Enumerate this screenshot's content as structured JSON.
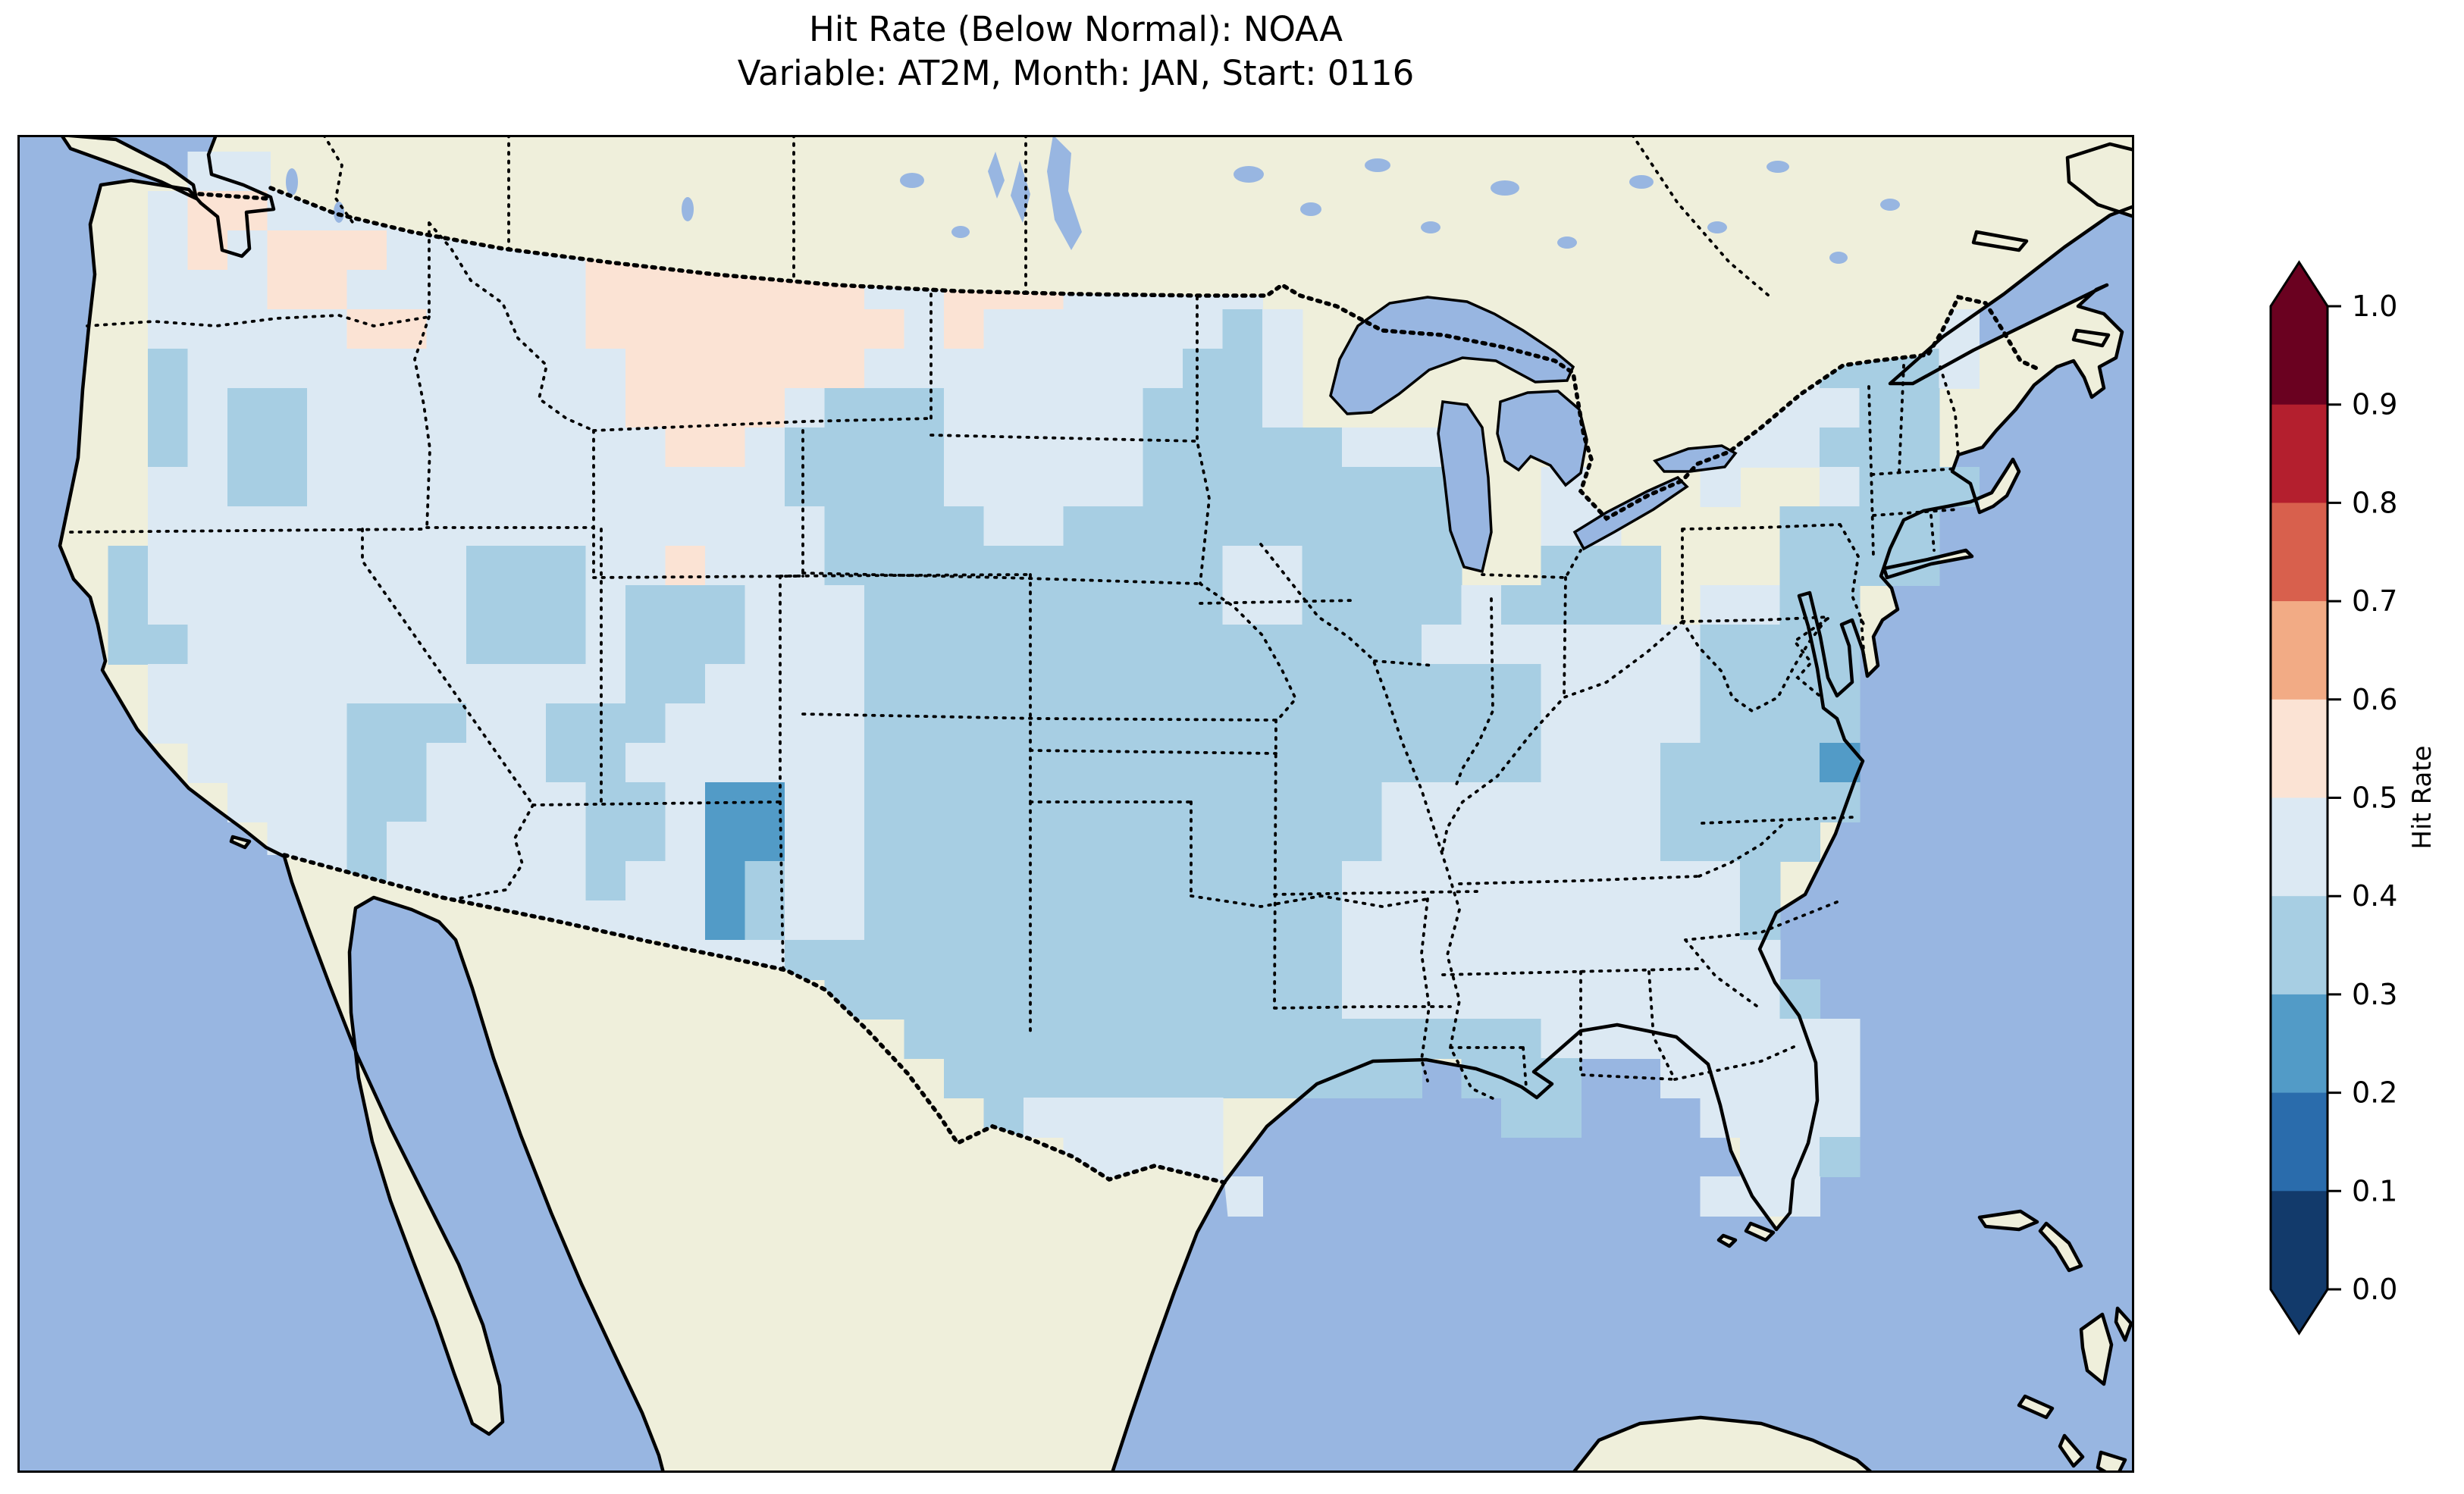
{
  "figure": {
    "title_line1": "Hit Rate (Below Normal): NOAA",
    "title_line2": "Variable: AT2M, Month: JAN, Start: 0116"
  },
  "colorbar": {
    "label": "Hit Rate",
    "ticks": [
      "1.0",
      "0.9",
      "0.8",
      "0.7",
      "0.6",
      "0.5",
      "0.4",
      "0.3",
      "0.2",
      "0.1",
      "0.0"
    ],
    "extend": "both",
    "bins_bottom_up": [
      {
        "range": "0.0-0.1",
        "color": "#123a6b"
      },
      {
        "range": "0.1-0.2",
        "color": "#2a6cac"
      },
      {
        "range": "0.2-0.3",
        "color": "#529bc7"
      },
      {
        "range": "0.3-0.4",
        "color": "#a7cee3"
      },
      {
        "range": "0.4-0.5",
        "color": "#dce9f3"
      },
      {
        "range": "0.5-0.6",
        "color": "#fbe3d4"
      },
      {
        "range": "0.6-0.7",
        "color": "#f2ab85"
      },
      {
        "range": "0.7-0.8",
        "color": "#d8604d"
      },
      {
        "range": "0.8-0.9",
        "color": "#b41f2e"
      },
      {
        "range": "0.9-1.0",
        "color": "#6a0120"
      }
    ]
  },
  "map": {
    "ocean_color": "#98b6e1",
    "land_color": "#efefdb",
    "lake_color": "#98b6e1",
    "coastline_color": "#000000",
    "border_linestyle": "dotted"
  },
  "chart_data": {
    "type": "heatmap",
    "title": "Hit Rate (Below Normal): NOAA",
    "subtitle": "Variable: AT2M, Month: JAN, Start: 0116",
    "source": "NOAA",
    "variable": "AT2M",
    "month": "JAN",
    "start": "0116",
    "colorbar_label": "Hit Rate",
    "bin_edges": [
      0.0,
      0.1,
      0.2,
      0.3,
      0.4,
      0.5,
      0.6,
      0.7,
      0.8,
      0.9,
      1.0
    ],
    "bin_colors_bottom_up": [
      "#123a6b",
      "#2a6cac",
      "#529bc7",
      "#a7cee3",
      "#dce9f3",
      "#fbe3d4",
      "#f2ab85",
      "#d8604d",
      "#b41f2e",
      "#6a0120"
    ],
    "region": "Contiguous United States on a North America map (Canada and Mexico shown as land without data)",
    "summary": "Hit rates are mostly 0.3-0.5 across CONUS. A 0.5-0.6 (pale pink) patch covers Montana/western North Dakota and spots in Washington; a 0.2-0.3 (dark blue) pocket sits in eastern New Mexico; 0.3-0.4 dominates the central/southern plains, Mississippi valley and coastal mid-Atlantic; 0.4-0.5 dominates the West, upper Midwest and Southeast.",
    "grid": {
      "ncols": 48,
      "nrows": 27,
      "cell_legend": {
        ".": "no data",
        "a": "0.4-0.5",
        "b": "0.3-0.4",
        "c": "0.2-0.3",
        "p": "0.5-0.6"
      },
      "cell_colors": {
        "a": "#dce9f3",
        "b": "#a7cee3",
        "c": "#529bc7",
        "p": "#fbe3d4"
      },
      "rows": [
        "...aaaa",
        "..appaaaaa",
        "..apapppaaaaapppaa",
        "..aaappaaaaaapppppppaapppaaaaa",
        "..aaaaappaaaappppppppapaaaaaaba............aaaaa",
        "..baaaaaaaaaaappppppaaaaaaaabba............abbba",
        "..babbaaaaaaaappppabbbaaaaabbba..........aaaabb",
        "..babbaaaaaaaaappabbbbaaaaabbbbbaaa......aaabbb",
        "..aabbaaaaaaaaaaaabbbbaaaaabbbbbbbb..aa..a..abbb",
        "..aaaaaaaaaaaaaaaaabbbbaabbbbbbbbbb..aa....bbbb",
        ".baaaaaaaabbbaapaaabbbbbbbbbbaabbbb..bbb...bbbb",
        ".baaaaaaaabbbabbbaaabbbbbbbbbaabbbbabbbb.aabb",
        ".bbaaaaaaabbbabbbaaabbbbbbbbbbbbbbaaaaaaabbbb",
        "..aaaaaaaaaaaabbaaaabbbbbbbbbbbbbbbbbaaaabbbb",
        "..aaaaabbbaabbbaaaaabbbbbbbbbbbbbbbbbaaaabbbb",
        "...aaaabbaaabbaaaaaabbbbbbbbbbbbbbbbbaaabbbbc",
        "....aaabbaaaabbaccaabbbbbbbbbbbbbaaaaaaabbbbb",
        ".....aabaaaaabbaccaabbbbbbbbbbbbbaaaaaaabbbb",
        "......abaaaaabaacbaabbbbbbbbbbbbaaaaaaaaaab",
        ".......aaaaaaaaacbaabbbbbbbbbbbbaaaaaaaaaab",
        "...............aaabbbbbbbbbbbbbbaaaaaaaaaaa",
        "...................bbbbbbbbbbbbbaaaaaaaaaaab",
        ".....................bbbbbbbbbbbbbbbbaaaaaaaa",
        "......................bbbbbbbbbbbb.bbb..aaaaa",
        ".......................baaaaa.......bb...aaaa",
        ".........................aaaa.............aab",
        "...........................aaa...........aaa"
      ]
    }
  }
}
